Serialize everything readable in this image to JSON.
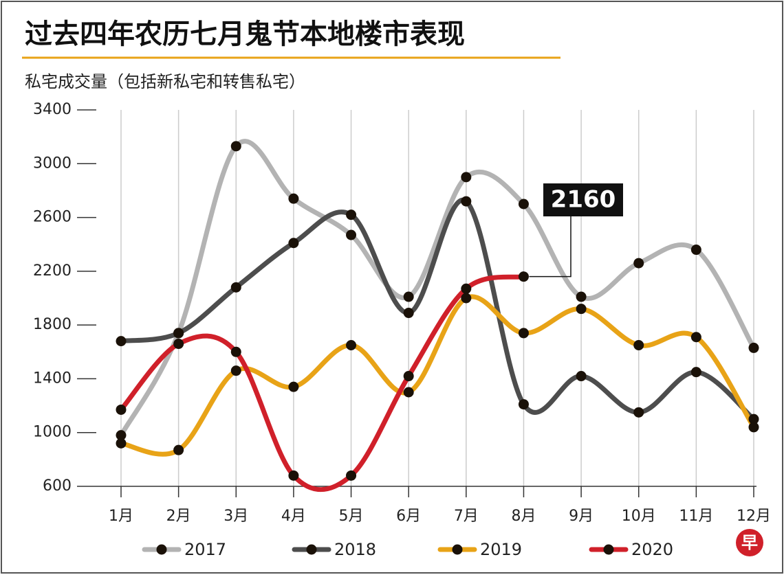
{
  "chart_data": {
    "type": "line",
    "title": "过去四年农历七月鬼节本地楼市表现",
    "subtitle": "私宅成交量（包括新私宅和转售私宅）",
    "categories": [
      "1月",
      "2月",
      "3月",
      "4月",
      "5月",
      "6月",
      "7月",
      "8月",
      "9月",
      "10月",
      "11月",
      "12月"
    ],
    "series": [
      {
        "name": "2017",
        "color": "#b3b3b3",
        "values": [
          980,
          1740,
          3130,
          2740,
          2470,
          2010,
          2900,
          2700,
          2010,
          2260,
          2360,
          1630
        ]
      },
      {
        "name": "2018",
        "color": "#4d4d4d",
        "values": [
          1680,
          1740,
          2080,
          2410,
          2620,
          1890,
          2720,
          1210,
          1420,
          1150,
          1450,
          1100
        ]
      },
      {
        "name": "2019",
        "color": "#e8a317",
        "values": [
          920,
          870,
          1460,
          1340,
          1650,
          1300,
          2000,
          1740,
          1920,
          1650,
          1710,
          1040
        ]
      },
      {
        "name": "2020",
        "color": "#d0202a",
        "values": [
          1170,
          1660,
          1600,
          680,
          680,
          1420,
          2070,
          2160,
          null,
          null,
          null,
          null
        ]
      }
    ],
    "ylim": [
      600,
      3400
    ],
    "yticks": [
      600,
      1000,
      1400,
      1800,
      2200,
      2600,
      3000,
      3400
    ],
    "grid": true,
    "legend": "bottom",
    "logo": "早"
  }
}
